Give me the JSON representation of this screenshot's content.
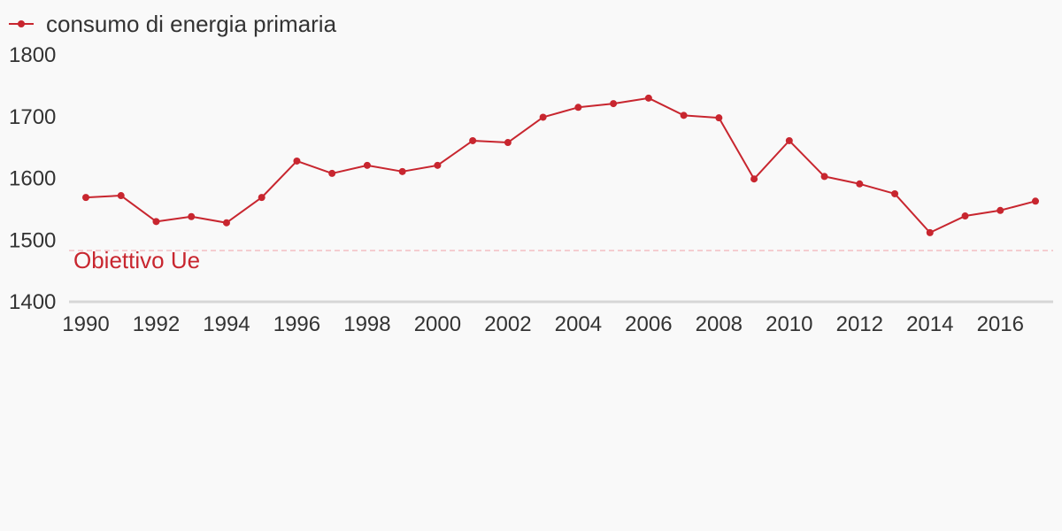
{
  "colors": {
    "series": "#c8262f",
    "target_line": "#f4bfc4",
    "axis": "#d6d6d6",
    "text": "#333333",
    "background": "#f9f9f9"
  },
  "legend": {
    "placement": "top-left"
  },
  "chart_data": {
    "type": "line",
    "title": "",
    "xlabel": "",
    "ylabel": "",
    "x": [
      1990,
      1991,
      1992,
      1993,
      1994,
      1995,
      1996,
      1997,
      1998,
      1999,
      2000,
      2001,
      2002,
      2003,
      2004,
      2005,
      2006,
      2007,
      2008,
      2009,
      2010,
      2011,
      2012,
      2013,
      2014,
      2015,
      2016,
      2017
    ],
    "series": [
      {
        "name": "consumo di energia primaria",
        "values": [
          1569,
          1572,
          1530,
          1538,
          1528,
          1569,
          1628,
          1608,
          1621,
          1611,
          1621,
          1661,
          1658,
          1699,
          1715,
          1721,
          1730,
          1702,
          1698,
          1599,
          1661,
          1603,
          1591,
          1575,
          1512,
          1539,
          1548,
          1563
        ]
      }
    ],
    "xlim": [
      1990,
      2017
    ],
    "ylim": [
      1400,
      1800
    ],
    "y_ticks": [
      "1400",
      "1500",
      "1600",
      "1700",
      "1800"
    ],
    "x_ticks": [
      "1990",
      "1992",
      "1994",
      "1996",
      "1998",
      "2000",
      "2002",
      "2004",
      "2006",
      "2008",
      "2010",
      "2012",
      "2014",
      "2016"
    ],
    "reference_line": {
      "value": 1483,
      "label": "Obiettivo Ue"
    },
    "grid": false
  }
}
